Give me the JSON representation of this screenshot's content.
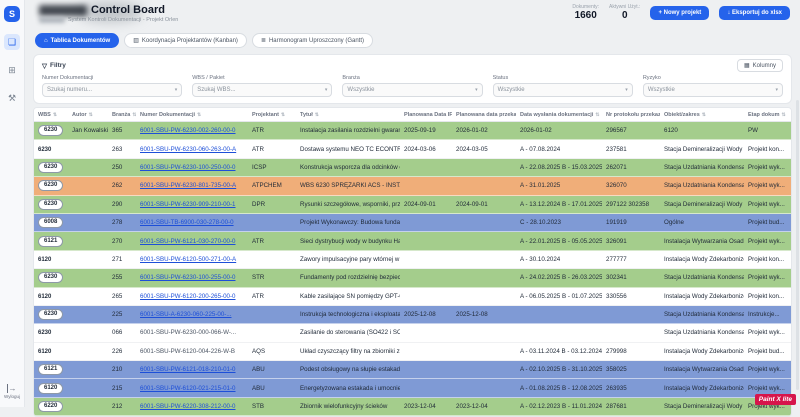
{
  "icons": {
    "sort": "⇅",
    "chevron": "▾",
    "filter": "▽",
    "columns": "▦",
    "download": "↓",
    "plus": "+",
    "board_tab": "⌂",
    "kanban_tab": "▥",
    "gantt_tab": "≣",
    "board": "❏",
    "grid": "⊞",
    "tools": "⚒",
    "logout": "→"
  },
  "sidebar": {
    "logo": "S",
    "logout_label": "Wyloguj"
  },
  "header": {
    "title": "Control Board",
    "subtitle": "System Kontroli Dokumentacji - Projekt Orlen",
    "stats": [
      {
        "label": "Dokumenty:",
        "value": "1660"
      },
      {
        "label": "Aktywni Użyt.:",
        "value": "0"
      }
    ],
    "buttons": {
      "new_project": "Nowy projekt",
      "export": "Eksportuj do xlsx"
    }
  },
  "tabs": [
    {
      "label": "Tablica Dokumentów"
    },
    {
      "label": "Koordynacja Projektantów (Kanban)"
    },
    {
      "label": "Harmonogram Uproszczony (Gantt)"
    }
  ],
  "filters": {
    "title": "Filtry",
    "columns_button": "Kolumny",
    "fields": [
      {
        "label": "Numer Dokumentacji",
        "value": "Szukaj numeru..."
      },
      {
        "label": "WBS / Pakiet",
        "value": "Szukaj WBS..."
      },
      {
        "label": "Branża",
        "value": "Wszystkie"
      },
      {
        "label": "Status",
        "value": "Wszystkie"
      },
      {
        "label": "Ryzyko",
        "value": "Wszystkie"
      }
    ]
  },
  "table": {
    "columns": [
      {
        "key": "wbs",
        "label": "WBS"
      },
      {
        "key": "autor",
        "label": "Autor"
      },
      {
        "key": "branza",
        "label": "Branża"
      },
      {
        "key": "numer",
        "label": "Numer Dokumentacji"
      },
      {
        "key": "projektant",
        "label": "Projektant"
      },
      {
        "key": "tytul",
        "label": "Tytuł"
      },
      {
        "key": "ifc",
        "label": "Planowana Data IFC"
      },
      {
        "key": "przekazanie",
        "label": "Planowana data przekazania"
      },
      {
        "key": "wyslanie",
        "label": "Data wysłania dokumentacji"
      },
      {
        "key": "protokol",
        "label": "Nr protokołu przekazania"
      },
      {
        "key": "obiekt",
        "label": "Obiekt/zakres"
      },
      {
        "key": "etap",
        "label": "Etap dokum"
      }
    ],
    "rows": [
      {
        "color": "green",
        "pill": true,
        "wbs": "6230",
        "autor": "Jan Kowalski",
        "branza": "365",
        "numer": "6001-SBU-PW-6230-002-260-00-0",
        "link": true,
        "projektant": "ATR",
        "tytul": "Instalacja zasilania rozdzielni gwarantowanego - układ pr...",
        "ifc": "2025-09-19",
        "przekazanie": "2026-01-02",
        "wyslanie": "2026-01-02",
        "protokol": "296567",
        "obiekt": "6120",
        "etap": "PW"
      },
      {
        "color": "white",
        "pill": false,
        "wbs": "6230",
        "autor": "",
        "branza": "263",
        "numer": "6001-SBU-PW-6230-060-263-00-A",
        "link": true,
        "projektant": "ATR",
        "tytul": "Dostawa systemu NEO TC ECONTROLplus / System reje...",
        "ifc": "2024-03-06",
        "przekazanie": "2024-03-05",
        "wyslanie": "A - 07.08.2024",
        "protokol": "237581",
        "obiekt": "Stacja Demineralizacji Wody",
        "etap": "Projekt kon..."
      },
      {
        "color": "green",
        "pill": true,
        "wbs": "6230",
        "autor": "",
        "branza": "250",
        "numer": "6001-SBU-PW-6230-100-250-00-0",
        "link": true,
        "projektant": "ICSP",
        "tytul": "Konstrukcja wsporcza dla odcinków estakady kablowej",
        "ifc": "",
        "przekazanie": "",
        "wyslanie": "A - 22.08.2025 B - 15.03.2025 C - 0.01...",
        "protokol": "262071",
        "obiekt": "Stacja Uzdatniania Kondensatu",
        "etap": "Projekt wyk..."
      },
      {
        "color": "orange",
        "pill": true,
        "wbs": "6230",
        "autor": "",
        "branza": "262",
        "numer": "6001-SBU-PW-6230-801-735-00-A",
        "link": true,
        "projektant": "ATPCHEM",
        "tytul": "WBS 6230 SPRĘŻARKI ACS - INSTALACJA UZDATNIANIA...",
        "ifc": "",
        "przekazanie": "",
        "wyslanie": "A - 31.01.2025",
        "protokol": "326070",
        "obiekt": "Stacja Uzdatniania Kondensatu",
        "etap": "Projekt wyk..."
      },
      {
        "color": "green",
        "pill": true,
        "wbs": "6230",
        "autor": "",
        "branza": "290",
        "numer": "6001-SBU-PW-6230-909-210-00-1",
        "link": true,
        "projektant": "DPR",
        "tytul": "Rysunki szczegółowe, wsporniki, przekroje",
        "ifc": "2024-09-01",
        "przekazanie": "2024-09-01",
        "wyslanie": "A - 13.12.2024 B - 17.01.2025 C - 05.02...",
        "protokol": "297122 302358",
        "obiekt": "Stacja Demineralizacji Wody",
        "etap": "Projekt wyk..."
      },
      {
        "color": "blue",
        "pill": true,
        "wbs": "6008",
        "autor": "",
        "branza": "278",
        "numer": "6001-SBU-TB-6900-030-278-00-0",
        "link": true,
        "projektant": "",
        "tytul": "Projekt Wykonawczy: Budowa fundamentów pod zbior...",
        "ifc": "",
        "przekazanie": "",
        "wyslanie": "C - 28.10.2023",
        "protokol": "191919",
        "obiekt": "Ogólne",
        "etap": "Projekt bud..."
      },
      {
        "color": "green",
        "pill": true,
        "wbs": "6121",
        "autor": "",
        "branza": "270",
        "numer": "6001-SBU-PW-6121-030-270-00-0",
        "link": true,
        "projektant": "ATR",
        "tytul": "Sieci dystrybucji wody w budynku Hali Prac",
        "ifc": "",
        "przekazanie": "",
        "wyslanie": "A - 22.01.2025 B - 05.05.2025 C - 20...",
        "protokol": "326091",
        "obiekt": "Instalacja Wytwarzania Osadów Poferm...",
        "etap": "Projekt wyk..."
      },
      {
        "color": "white",
        "pill": false,
        "wbs": "6120",
        "autor": "",
        "branza": "271",
        "numer": "6001-SBU-PW-6120-500-271-00-A",
        "link": true,
        "projektant": "",
        "tytul": "Zawory impulsacyjne pary wtórnej w budynku pomocniczym...",
        "ifc": "",
        "przekazanie": "",
        "wyslanie": "A - 30.10.2024",
        "protokol": "277777",
        "obiekt": "Instalacja Wody Zdekarbonizowanej i ...",
        "etap": "Projekt kon..."
      },
      {
        "color": "green",
        "pill": true,
        "wbs": "6230",
        "autor": "",
        "branza": "255",
        "numer": "6001-SBU-PW-6230-100-255-00-0",
        "link": true,
        "projektant": "STR",
        "tytul": "Fundamenty pod rozdzielnię bezpieczeństwa",
        "ifc": "",
        "przekazanie": "",
        "wyslanie": "A - 24.02.2025 B - 26.03.2025 C - 02...",
        "protokol": "302341",
        "obiekt": "Stacja Uzdatniania Kondensatu",
        "etap": "Projekt wyk..."
      },
      {
        "color": "white",
        "pill": false,
        "wbs": "6120",
        "autor": "",
        "branza": "265",
        "numer": "6001-SBU-PW-6120-200-265-00-0",
        "link": true,
        "projektant": "ATR",
        "tytul": "Kable zasilające SN pomiędzy GPT-06 oraz GPT-05",
        "ifc": "",
        "przekazanie": "",
        "wyslanie": "A - 06.05.2025 B - 01.07.2025",
        "protokol": "330556",
        "obiekt": "Instalacja Wody Zdekarbonizowanej i ...",
        "etap": "Projekt kon..."
      },
      {
        "color": "blue",
        "pill": true,
        "wbs": "6230",
        "autor": "",
        "branza": "225",
        "numer": "6001-SBU-A-6230-060-225-00-...",
        "link": true,
        "projektant": "",
        "tytul": "Instrukcja technologiczna i eksploatacyjna, Stacja Uzdat...",
        "ifc": "2025-12-08",
        "przekazanie": "2025-12-08",
        "wyslanie": "",
        "protokol": "",
        "obiekt": "Stacja Uzdatniania Kondensatu",
        "etap": "Instrukcje..."
      },
      {
        "color": "white",
        "pill": false,
        "wbs": "6230",
        "autor": "",
        "branza": "066",
        "numer": "6001-SBU-PW-6230-000-066-W-...",
        "link": false,
        "projektant": "",
        "tytul": "Zasilanie do sterowania (SO422 i SO436) - obiekt pom...",
        "ifc": "",
        "przekazanie": "",
        "wyslanie": "",
        "protokol": "",
        "obiekt": "Stacja Uzdatniania Kondensatu",
        "etap": "Projekt wyk..."
      },
      {
        "color": "white",
        "pill": false,
        "wbs": "6120",
        "autor": "",
        "branza": "226",
        "numer": "6001-SBU-PW-6120-004-226-W-B",
        "link": false,
        "projektant": "AQS",
        "tytul": "Układ czyszczący filtry na zbiorniki zasilania wody nap...",
        "ifc": "",
        "przekazanie": "",
        "wyslanie": "A - 03.11.2024 B - 03.12.2024",
        "protokol": "279998",
        "obiekt": "Instalacja Wody Zdekarbonizowanej i ...",
        "etap": "Projekt bud..."
      },
      {
        "color": "blue",
        "pill": true,
        "wbs": "6121",
        "autor": "",
        "branza": "210",
        "numer": "6001-SBU-PW-6121-018-210-01-0",
        "link": true,
        "projektant": "ABU",
        "tytul": "Podest obsługowy na słupie estakady przy budynku OK...",
        "ifc": "",
        "przekazanie": "",
        "wyslanie": "A - 02.10.2025 B - 31.10.2025",
        "protokol": "358025",
        "obiekt": "Instalacja Wytwarzania Osadów Poferm...",
        "etap": "Projekt wyk..."
      },
      {
        "color": "blue",
        "pill": true,
        "wbs": "6120",
        "autor": "",
        "branza": "215",
        "numer": "6001-SBU-PW-6120-021-215-01-0",
        "link": true,
        "projektant": "ABU",
        "tytul": "Energetyzowana estakada i umocnienia rozpraszania - fun...",
        "ifc": "",
        "przekazanie": "",
        "wyslanie": "A - 01.08.2025 B - 12.08.2025 C - 07.1...",
        "protokol": "263935",
        "obiekt": "Instalacja Wody Zdekarbonizowanej i ...",
        "etap": "Projekt wyk..."
      },
      {
        "color": "green",
        "pill": true,
        "wbs": "6220",
        "autor": "",
        "branza": "212",
        "numer": "6001-SBU-PW-6220-308-212-00-0",
        "link": true,
        "projektant": "STB",
        "tytul": "Zbiornik wielofunkcyjny ścieków",
        "ifc": "2023-12-04",
        "przekazanie": "2023-12-04",
        "wyslanie": "A - 02.12.2023 B - 11.01.2024 C - 23.01...",
        "protokol": "287681",
        "obiekt": "Stacja Demineralizacji Wody",
        "etap": "Projekt wyk..."
      }
    ]
  },
  "watermark": "Paint X lite",
  "colors": {
    "accent": "#2563eb",
    "row_green": "#a4cd8c",
    "row_orange": "#f0ae79",
    "row_blue": "#7f9ad5",
    "watermark_red": "#d6154b"
  }
}
